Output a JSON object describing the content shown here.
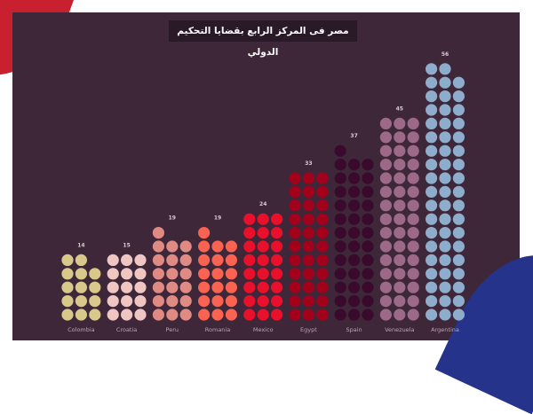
{
  "chart_data": {
    "type": "bar",
    "subtype": "dot-waffle",
    "title": "مصر فى المركز الرابع بقضايا التحكيم الدولي",
    "categories": [
      "Colombia",
      "Croatia",
      "Peru",
      "Romania",
      "Mexico",
      "Egypt",
      "Spain",
      "Venezuela",
      "Argentina"
    ],
    "values": [
      14,
      15,
      19,
      19,
      24,
      33,
      37,
      45,
      56
    ],
    "dots_per_row": 3,
    "colors": [
      "#d8c88a",
      "#f0c6c2",
      "#e08a84",
      "#fa6252",
      "#e8102a",
      "#a3001c",
      "#3a0a2c",
      "#9c6a88",
      "#8eaccb"
    ],
    "background": "#3d2738",
    "grid": false,
    "legend": "none"
  }
}
